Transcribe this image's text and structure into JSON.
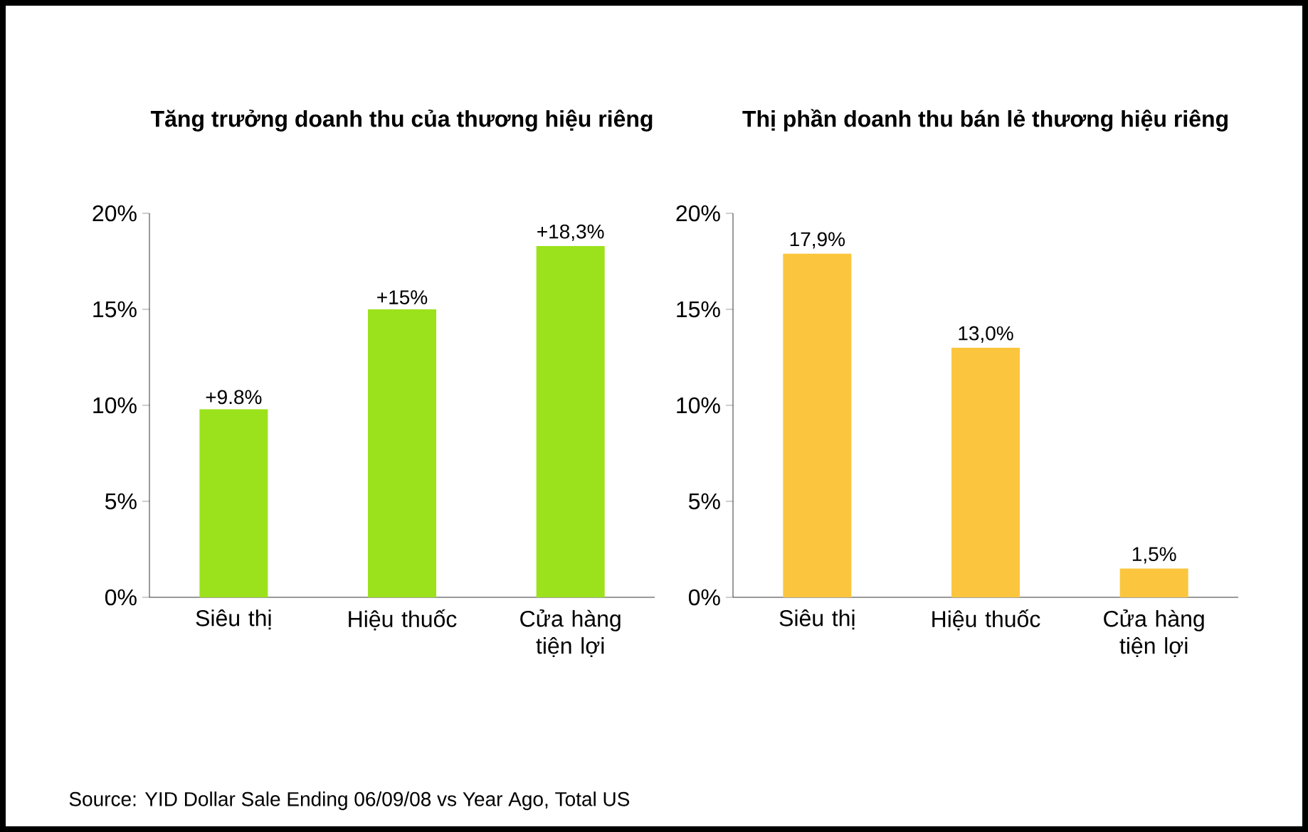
{
  "chart_data": [
    {
      "type": "bar",
      "title": "Tăng trưởng doanh thu của thương hiệu riêng",
      "categories": [
        "Siêu thị",
        "Hiệu thuốc",
        "Cửa hàng tiện lợi"
      ],
      "values": [
        9.8,
        15,
        18.3
      ],
      "value_labels": [
        "+9.8%",
        "+15%",
        "+18,3%"
      ],
      "color": "#9be21c",
      "ylim": [
        0,
        20
      ],
      "yticks": [
        {
          "value": 0,
          "label": "0%"
        },
        {
          "value": 5,
          "label": "5%"
        },
        {
          "value": 10,
          "label": "10%"
        },
        {
          "value": 15,
          "label": "15%"
        },
        {
          "value": 20,
          "label": "20%"
        }
      ],
      "annotations": [
        "Source: YID Dollar Sale Ending 06/09/08 vs Year Ago, Total US"
      ]
    },
    {
      "type": "bar",
      "title": "Thị phần doanh thu bán lẻ thương hiệu riêng",
      "categories": [
        "Siêu thị",
        "Hiệu thuốc",
        "Cửa hàng tiện lợi"
      ],
      "values": [
        17.9,
        13.0,
        1.5
      ],
      "value_labels": [
        "17,9%",
        "13,0%",
        "1,5%"
      ],
      "color": "#fbc63e",
      "ylim": [
        0,
        20
      ],
      "yticks": [
        {
          "value": 0,
          "label": "0%"
        },
        {
          "value": 5,
          "label": "5%"
        },
        {
          "value": 10,
          "label": "10%"
        },
        {
          "value": 15,
          "label": "15%"
        },
        {
          "value": 20,
          "label": "20%"
        }
      ]
    }
  ]
}
